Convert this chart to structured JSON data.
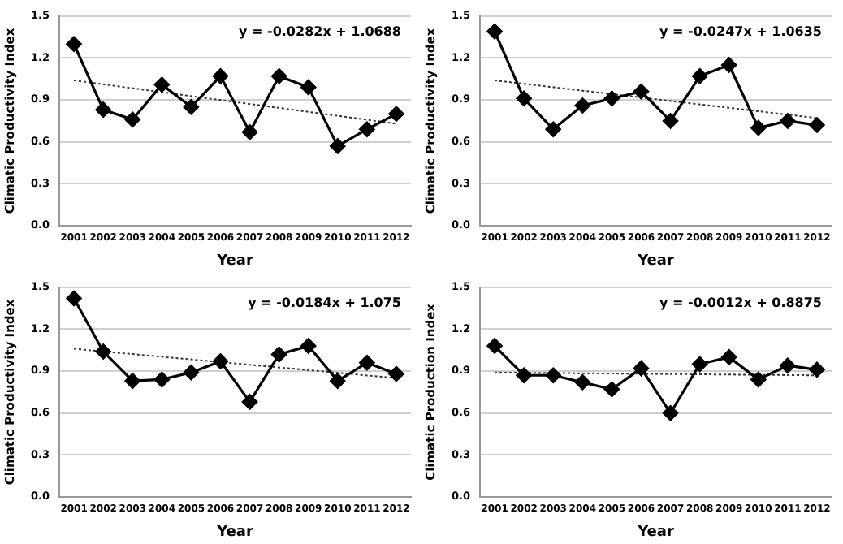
{
  "chart_data": [
    {
      "type": "line",
      "ylabel": "Climatic Productivity Index",
      "xlabel": "Year",
      "categories": [
        "2001",
        "2002",
        "2003",
        "2004",
        "2005",
        "2006",
        "2007",
        "2008",
        "2009",
        "2010",
        "2011",
        "2012"
      ],
      "ylim": [
        0,
        1.5
      ],
      "yticks": [
        {
          "value": 0,
          "label": "0.0"
        },
        {
          "value": 0.3,
          "label": "0.3"
        },
        {
          "value": 0.6,
          "label": "0.6"
        },
        {
          "value": 0.9,
          "label": "0.9"
        },
        {
          "value": 1.2,
          "label": "1.2"
        },
        {
          "value": 1.5,
          "label": "1.5"
        }
      ],
      "grid": "y",
      "legend": false,
      "annotations": [
        "y = -0.0282x + 1.0688"
      ],
      "series": [
        {
          "color": "#000000",
          "marker": "diamond",
          "line_style": "solid",
          "values": [
            1.3,
            0.83,
            0.76,
            1.01,
            0.85,
            1.07,
            0.67,
            1.07,
            0.99,
            0.57,
            0.69,
            0.8
          ]
        },
        {
          "type": "line",
          "color": "#333333",
          "marker": "none",
          "line_style": "dotted",
          "values": [
            1.04,
            null,
            null,
            null,
            null,
            null,
            null,
            null,
            null,
            null,
            null,
            0.73
          ]
        }
      ]
    },
    {
      "type": "line",
      "ylabel": "Climatic Productivity Index",
      "xlabel": "Year",
      "categories": [
        "2001",
        "2002",
        "2003",
        "2004",
        "2005",
        "2006",
        "2007",
        "2008",
        "2009",
        "2010",
        "2011",
        "2012"
      ],
      "ylim": [
        0,
        1.5
      ],
      "yticks": [
        {
          "value": 0,
          "label": "0.0"
        },
        {
          "value": 0.3,
          "label": "0.3"
        },
        {
          "value": 0.6,
          "label": "0.6"
        },
        {
          "value": 0.9,
          "label": "0.9"
        },
        {
          "value": 1.2,
          "label": "1.2"
        },
        {
          "value": 1.5,
          "label": "1.5"
        }
      ],
      "grid": "y",
      "legend": false,
      "annotations": [
        "y = -0.0247x + 1.0635"
      ],
      "series": [
        {
          "color": "#000000",
          "marker": "diamond",
          "line_style": "solid",
          "values": [
            1.39,
            0.91,
            0.69,
            0.86,
            0.91,
            0.96,
            0.75,
            1.07,
            1.15,
            0.7,
            0.75,
            0.72
          ]
        },
        {
          "type": "line",
          "color": "#333333",
          "marker": "none",
          "line_style": "dotted",
          "values": [
            1.04,
            null,
            null,
            null,
            null,
            null,
            null,
            null,
            null,
            null,
            null,
            0.77
          ]
        }
      ]
    },
    {
      "type": "line",
      "ylabel": "Climatic Productivity Index",
      "xlabel": "Year",
      "categories": [
        "2001",
        "2002",
        "2003",
        "2004",
        "2005",
        "2006",
        "2007",
        "2008",
        "2009",
        "2010",
        "2011",
        "2012"
      ],
      "ylim": [
        0,
        1.5
      ],
      "yticks": [
        {
          "value": 0,
          "label": "0.0"
        },
        {
          "value": 0.3,
          "label": "0.3"
        },
        {
          "value": 0.6,
          "label": "0.6"
        },
        {
          "value": 0.9,
          "label": "0.9"
        },
        {
          "value": 1.2,
          "label": "1.2"
        },
        {
          "value": 1.5,
          "label": "1.5"
        }
      ],
      "grid": "y",
      "legend": false,
      "annotations": [
        "y = -0.0184x + 1.075"
      ],
      "series": [
        {
          "color": "#000000",
          "marker": "diamond",
          "line_style": "solid",
          "values": [
            1.42,
            1.04,
            0.83,
            0.84,
            0.89,
            0.97,
            0.68,
            1.02,
            1.08,
            0.83,
            0.96,
            0.88
          ]
        },
        {
          "type": "line",
          "color": "#333333",
          "marker": "none",
          "line_style": "dotted",
          "values": [
            1.06,
            null,
            null,
            null,
            null,
            null,
            null,
            null,
            null,
            null,
            null,
            0.85
          ]
        }
      ]
    },
    {
      "type": "line",
      "ylabel": "Climatic Production Index",
      "xlabel": "Year",
      "categories": [
        "2001",
        "2002",
        "2003",
        "2004",
        "2005",
        "2006",
        "2007",
        "2008",
        "2009",
        "2010",
        "2011",
        "2012"
      ],
      "ylim": [
        0,
        1.5
      ],
      "yticks": [
        {
          "value": 0,
          "label": "0.0"
        },
        {
          "value": 0.3,
          "label": "0.3"
        },
        {
          "value": 0.6,
          "label": "0.6"
        },
        {
          "value": 0.9,
          "label": "0.9"
        },
        {
          "value": 1.2,
          "label": "1.2"
        },
        {
          "value": 1.5,
          "label": "1.5"
        }
      ],
      "grid": "y",
      "legend": false,
      "annotations": [
        "y = -0.0012x + 0.8875"
      ],
      "series": [
        {
          "color": "#000000",
          "marker": "diamond",
          "line_style": "solid",
          "values": [
            1.08,
            0.87,
            0.87,
            0.82,
            0.77,
            0.92,
            0.6,
            0.95,
            1.0,
            0.84,
            0.94,
            0.91
          ]
        },
        {
          "type": "line",
          "color": "#333333",
          "marker": "none",
          "line_style": "dotted",
          "values": [
            0.89,
            null,
            null,
            null,
            null,
            null,
            null,
            null,
            null,
            null,
            null,
            0.87
          ]
        }
      ]
    }
  ]
}
